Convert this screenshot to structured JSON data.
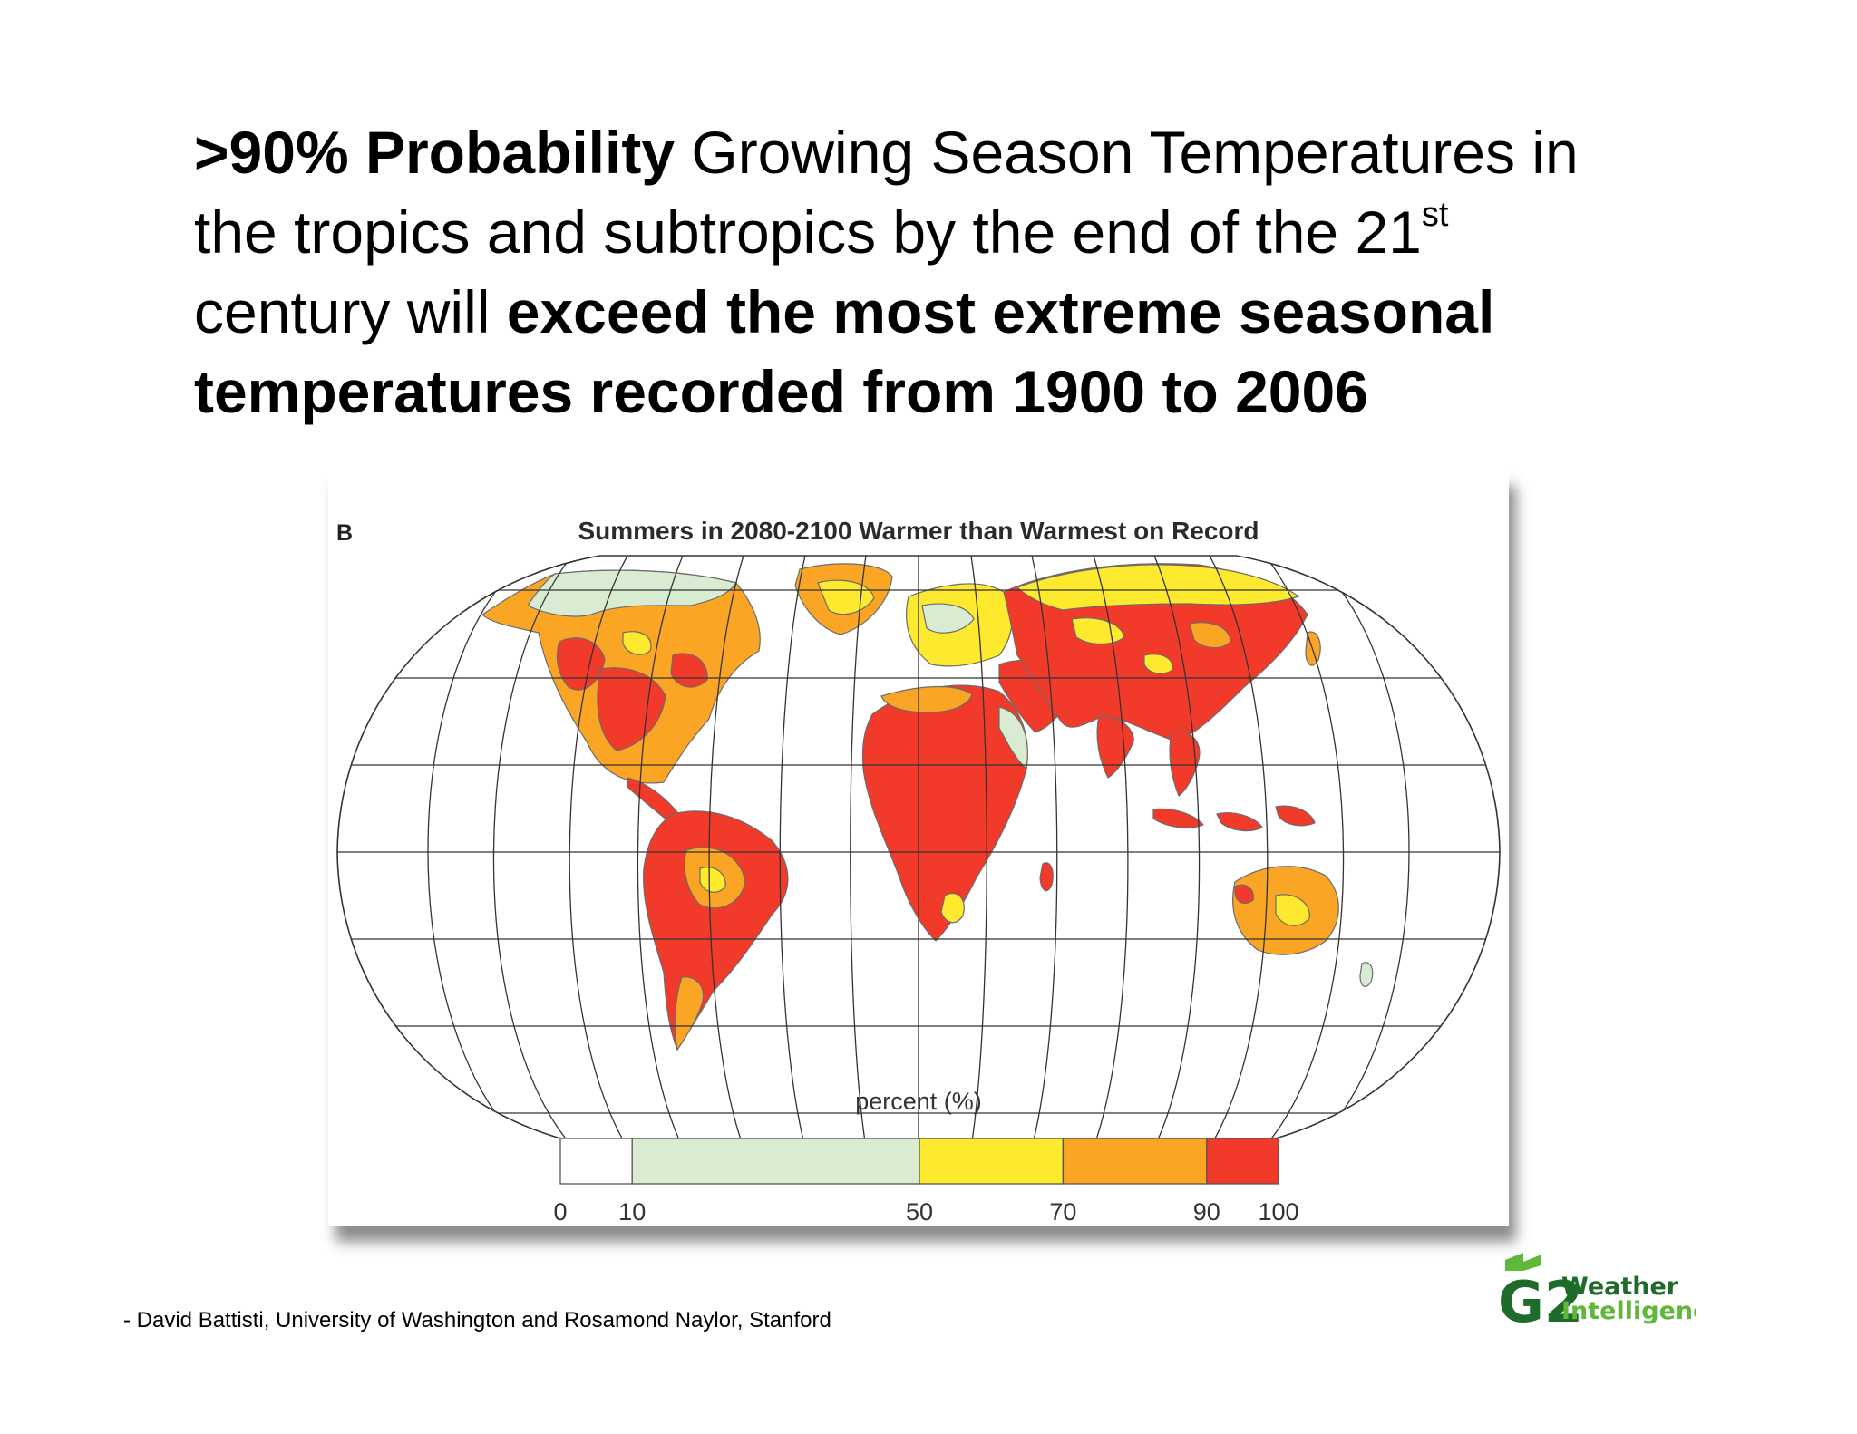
{
  "headline": {
    "seg1_bold": ">90% Probability",
    "seg2": " Growing Season Temperatures in the tropics and subtropics by the end of the 21",
    "seg2_sup": "st",
    "seg3": " century will ",
    "seg4_bold": "exceed the most extreme seasonal temperatures recorded from 1900 to 2006"
  },
  "figure": {
    "panel_letter": "B",
    "title": "Summers in 2080-2100 Warmer than Warmest on Record",
    "legend": {
      "title": "percent (%)",
      "bins": [
        {
          "from": 0,
          "to": 10,
          "color": "#ffffff"
        },
        {
          "from": 10,
          "to": 50,
          "color": "#d9ecd2"
        },
        {
          "from": 50,
          "to": 70,
          "color": "#fde92e"
        },
        {
          "from": 70,
          "to": 90,
          "color": "#fba524"
        },
        {
          "from": 90,
          "to": 100,
          "color": "#f23a2b"
        }
      ],
      "tick_labels": [
        "0",
        "10",
        "50",
        "70",
        "90",
        "100"
      ]
    }
  },
  "credit": "-  David Battisti, University of Washington and Rosamond Naylor, Stanford",
  "logo": {
    "mark": "G2",
    "line1": "Weather",
    "line2": "Intelligence",
    "colors": {
      "dark": "#1e6b2a",
      "light": "#5fb83a"
    }
  }
}
